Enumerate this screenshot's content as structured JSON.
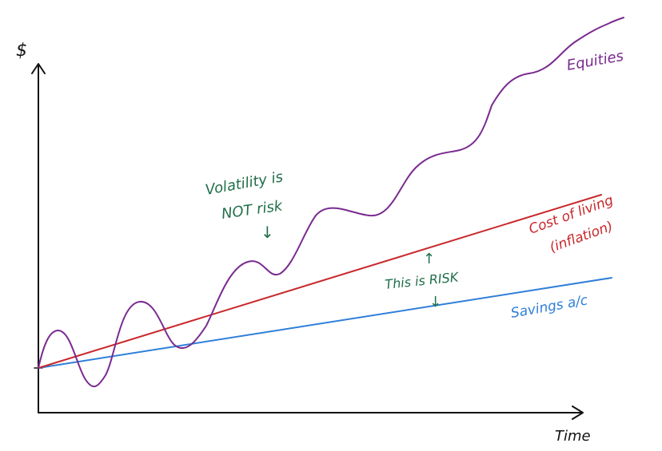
{
  "axes": {
    "y_label": "$",
    "x_label": "Time"
  },
  "lines": {
    "equities": {
      "label": "Equities",
      "color": "#7a2a8f"
    },
    "cost_of_living": {
      "label_line1": "Cost of living",
      "label_line2": "(inflation)",
      "color": "#c8282b"
    },
    "savings": {
      "label": "Savings a/c",
      "color": "#2f7fd8"
    }
  },
  "annotations": {
    "volatility": {
      "line1": "Volatility is",
      "line2": "NOT risk",
      "arrow": "↓",
      "color": "#1f6e4a"
    },
    "risk": {
      "up_arrow": "↑",
      "text": "This is RISK",
      "down_arrow": "↓",
      "color": "#1f6e4a"
    }
  },
  "colors": {
    "axis": "#111111"
  }
}
